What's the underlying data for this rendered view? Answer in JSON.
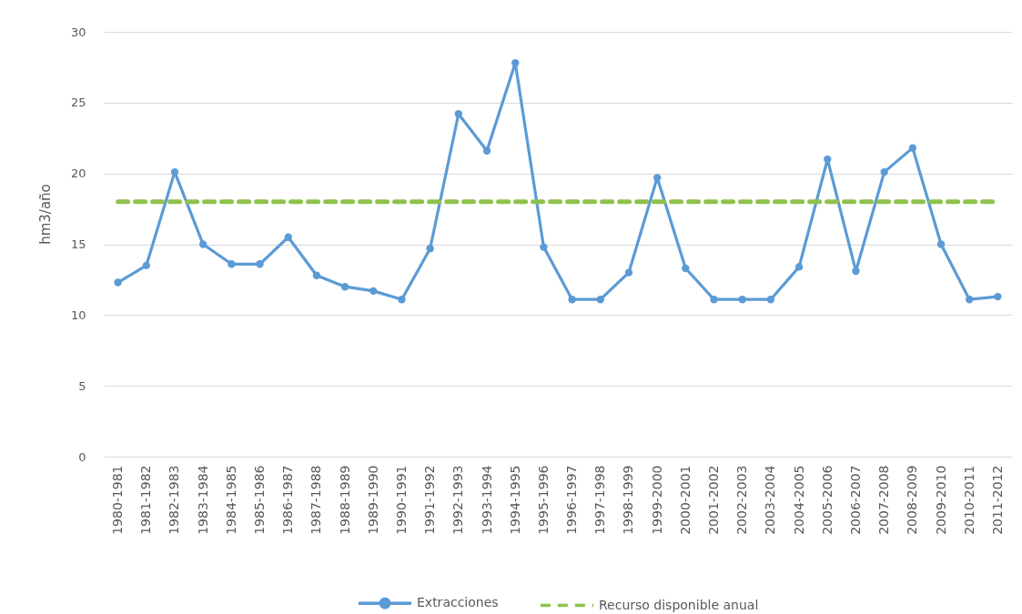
{
  "chart_data": {
    "type": "line",
    "ylabel": "hm3/año",
    "categories": [
      "1980-1981",
      "1981-1982",
      "1982-1983",
      "1983-1984",
      "1984-1985",
      "1985-1986",
      "1986-1987",
      "1987-1988",
      "1988-1989",
      "1989-1990",
      "1990-1991",
      "1991-1992",
      "1992-1993",
      "1993-1994",
      "1994-1995",
      "1995-1996",
      "1996-1997",
      "1997-1998",
      "1998-1999",
      "1999-2000",
      "2000-2001",
      "2001-2002",
      "2002-2003",
      "2003-2004",
      "2004-2005",
      "2005-2006",
      "2006-2007",
      "2007-2008",
      "2008-2009",
      "2009-2010",
      "2010-2011",
      "2011-2012"
    ],
    "series": [
      {
        "name": "Extracciones",
        "color": "#5b9bd5",
        "marker": "circle",
        "line_style": "solid",
        "values": [
          12.3,
          13.5,
          20.1,
          15.0,
          13.6,
          13.6,
          15.5,
          12.8,
          12.0,
          11.7,
          11.1,
          14.7,
          24.2,
          21.6,
          27.8,
          14.8,
          11.1,
          11.1,
          13.0,
          19.7,
          13.3,
          11.1,
          11.1,
          11.1,
          13.4,
          21.0,
          13.1,
          20.1,
          21.8,
          15.0,
          11.1,
          11.3
        ]
      },
      {
        "name": "Recurso disponible anual",
        "color": "#8dc24c",
        "marker": "none",
        "line_style": "dashed",
        "values": [
          18,
          18,
          18,
          18,
          18,
          18,
          18,
          18,
          18,
          18,
          18,
          18,
          18,
          18,
          18,
          18,
          18,
          18,
          18,
          18,
          18,
          18,
          18,
          18,
          18,
          18,
          18,
          18,
          18,
          18,
          18,
          18
        ]
      }
    ],
    "ylim": [
      0,
      30
    ],
    "yticks": [
      0,
      5,
      10,
      15,
      20,
      25,
      30
    ],
    "grid": "y",
    "legend": "bottom"
  }
}
